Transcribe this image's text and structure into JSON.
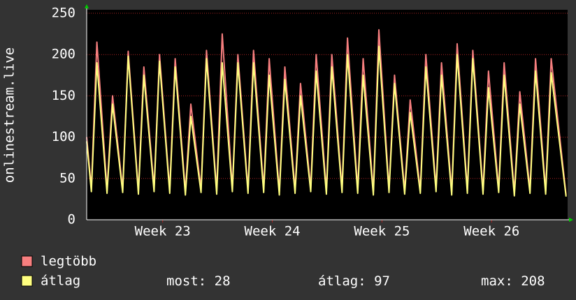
{
  "chart_data": {
    "type": "line",
    "y_label": "onlinestream.live",
    "xlim": [
      0,
      30.7
    ],
    "xticks": [
      {
        "value": 4.85,
        "label": "Week 23"
      },
      {
        "value": 11.85,
        "label": "Week 24"
      },
      {
        "value": 18.85,
        "label": "Week 25"
      },
      {
        "value": 25.85,
        "label": "Week 26"
      }
    ],
    "ylim": [
      0,
      250
    ],
    "yticks": [
      0,
      50,
      100,
      150,
      200,
      250
    ],
    "grid": true,
    "x": [
      0,
      0.3,
      0.65,
      1.3,
      1.65,
      2.3,
      2.65,
      3.3,
      3.65,
      4.3,
      4.65,
      5.3,
      5.65,
      6.3,
      6.65,
      7.3,
      7.65,
      8.3,
      8.65,
      9.3,
      9.65,
      10.3,
      10.65,
      11.3,
      11.65,
      12.3,
      12.65,
      13.3,
      13.65,
      14.3,
      14.65,
      15.3,
      15.65,
      16.3,
      16.65,
      17.3,
      17.65,
      18.3,
      18.65,
      19.3,
      19.65,
      20.3,
      20.65,
      21.3,
      21.65,
      22.3,
      22.65,
      23.3,
      23.65,
      24.3,
      24.65,
      25.3,
      25.65,
      26.3,
      26.65,
      27.3,
      27.65,
      28.3,
      28.65,
      29.3,
      29.65,
      30.6
    ],
    "series": [
      {
        "name": "legtöbb",
        "color": "#f77f7f",
        "values": [
          100,
          38,
          215,
          36,
          150,
          37,
          204,
          35,
          185,
          38,
          200,
          36,
          195,
          34,
          140,
          37,
          205,
          35,
          225,
          38,
          200,
          36,
          205,
          37,
          195,
          34,
          185,
          36,
          165,
          38,
          200,
          35,
          200,
          37,
          220,
          36,
          195,
          34,
          230,
          37,
          175,
          35,
          145,
          36,
          200,
          38,
          190,
          34,
          213,
          36,
          205,
          35,
          180,
          37,
          190,
          33,
          155,
          36,
          195,
          35,
          195,
          30
        ]
      },
      {
        "name": "átlag",
        "color": "#ffff80",
        "values": [
          95,
          34,
          190,
          32,
          140,
          33,
          198,
          31,
          175,
          34,
          192,
          32,
          185,
          30,
          125,
          33,
          195,
          31,
          190,
          34,
          190,
          32,
          190,
          33,
          175,
          30,
          170,
          32,
          150,
          34,
          180,
          31,
          185,
          33,
          200,
          32,
          175,
          30,
          210,
          33,
          165,
          31,
          130,
          32,
          185,
          34,
          175,
          30,
          200,
          32,
          195,
          31,
          160,
          33,
          175,
          29,
          140,
          32,
          180,
          31,
          178,
          28
        ]
      }
    ],
    "summary": [
      {
        "label": "most:",
        "value": 28
      },
      {
        "label": "átlag:",
        "value": 97
      },
      {
        "label": "max:",
        "value": 208
      }
    ]
  }
}
